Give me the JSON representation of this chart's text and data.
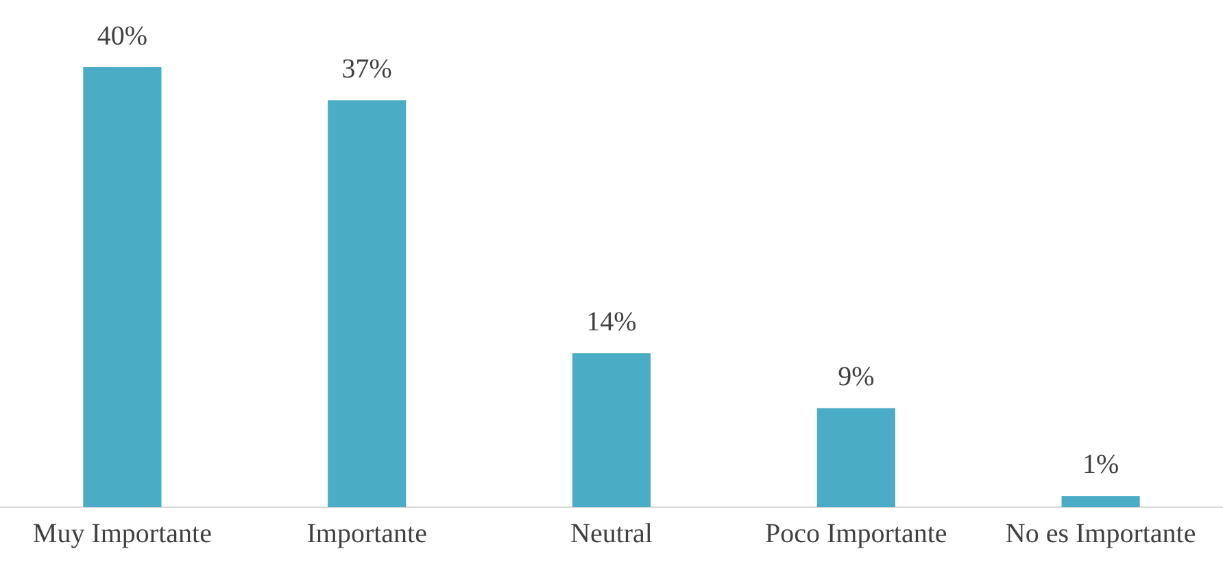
{
  "chart_data": {
    "type": "bar",
    "categories": [
      "Muy Importante",
      "Importante",
      "Neutral",
      "Poco Importante",
      "No es Importante"
    ],
    "values": [
      40,
      37,
      14,
      9,
      1
    ],
    "value_labels": [
      "40%",
      "37%",
      "14%",
      "9%",
      "1%"
    ],
    "color": "#4bacc6",
    "tick_labels": "x",
    "grid": false,
    "legend": false
  }
}
